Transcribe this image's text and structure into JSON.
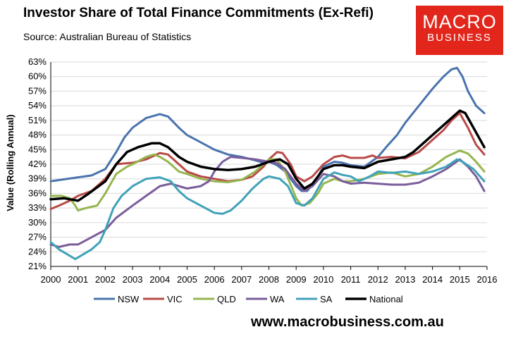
{
  "header": {
    "title": "Investor Share of Total Finance Commitments (Ex-Refi)",
    "source": "Source: Australian Bureau of Statistics"
  },
  "logo": {
    "line1": "MACRO",
    "line2": "BUSINESS"
  },
  "footer": {
    "url": "www.macrobusiness.com.au"
  },
  "colors": {
    "NSW": "#4a73ad",
    "VIC": "#b94a47",
    "QLD": "#96b54f",
    "WA": "#7a5d9b",
    "SA": "#40a2b8",
    "National": "#000000",
    "brand": "#e2261c"
  },
  "chart_data": {
    "type": "line",
    "title": "Investor Share of Total Finance Commitments (Ex-Refi)",
    "xlabel": "",
    "ylabel": "Value (Rolling Annual)",
    "xlim": [
      2000,
      2016
    ],
    "ylim": [
      21,
      63
    ],
    "x_ticks": [
      "2000",
      "2001",
      "2002",
      "2003",
      "2004",
      "2005",
      "2006",
      "2007",
      "2008",
      "2009",
      "2010",
      "2011",
      "2012",
      "2013",
      "2014",
      "2015",
      "2016"
    ],
    "y_ticks": [
      "21%",
      "24%",
      "27%",
      "30%",
      "33%",
      "36%",
      "39%",
      "42%",
      "45%",
      "48%",
      "51%",
      "54%",
      "57%",
      "60%",
      "63%"
    ],
    "legend_position": "bottom",
    "series": [
      {
        "name": "NSW",
        "points": [
          [
            2000,
            38.5
          ],
          [
            2000.5,
            38.9
          ],
          [
            2001,
            39.3
          ],
          [
            2001.5,
            39.7
          ],
          [
            2002,
            41
          ],
          [
            2002.4,
            44.5
          ],
          [
            2002.7,
            47.5
          ],
          [
            2003,
            49.5
          ],
          [
            2003.5,
            51.5
          ],
          [
            2004,
            52.3
          ],
          [
            2004.3,
            51.8
          ],
          [
            2004.7,
            49.5
          ],
          [
            2005,
            48
          ],
          [
            2005.5,
            46.5
          ],
          [
            2006,
            45
          ],
          [
            2006.5,
            44
          ],
          [
            2007,
            43.5
          ],
          [
            2007.5,
            42.8
          ],
          [
            2007.8,
            42.3
          ],
          [
            2008,
            42.5
          ],
          [
            2008.3,
            41.8
          ],
          [
            2008.6,
            40.5
          ],
          [
            2009,
            37.5
          ],
          [
            2009.2,
            36.5
          ],
          [
            2009.4,
            36.5
          ],
          [
            2009.7,
            38.5
          ],
          [
            2010,
            41.5
          ],
          [
            2010.4,
            42.5
          ],
          [
            2010.7,
            42.3
          ],
          [
            2011,
            41.8
          ],
          [
            2011.5,
            41.5
          ],
          [
            2012,
            43.5
          ],
          [
            2012.3,
            45.5
          ],
          [
            2012.7,
            48
          ],
          [
            2013,
            50.5
          ],
          [
            2013.5,
            54
          ],
          [
            2014,
            57.5
          ],
          [
            2014.4,
            60
          ],
          [
            2014.7,
            61.5
          ],
          [
            2014.9,
            61.8
          ],
          [
            2015.1,
            60
          ],
          [
            2015.3,
            57
          ],
          [
            2015.6,
            54
          ],
          [
            2015.9,
            52.5
          ]
        ]
      },
      {
        "name": "VIC",
        "points": [
          [
            2000,
            32.8
          ],
          [
            2000.3,
            33.5
          ],
          [
            2000.7,
            34.5
          ],
          [
            2001,
            35.5
          ],
          [
            2001.5,
            36.5
          ],
          [
            2002,
            39
          ],
          [
            2002.4,
            42
          ],
          [
            2003,
            42.3
          ],
          [
            2003.5,
            43
          ],
          [
            2004,
            44.3
          ],
          [
            2004.3,
            44
          ],
          [
            2004.7,
            42
          ],
          [
            2005,
            40.5
          ],
          [
            2005.5,
            39.5
          ],
          [
            2006,
            39
          ],
          [
            2006.5,
            38.5
          ],
          [
            2007,
            38.8
          ],
          [
            2007.4,
            39.5
          ],
          [
            2007.8,
            41.5
          ],
          [
            2008,
            43
          ],
          [
            2008.3,
            44.5
          ],
          [
            2008.5,
            44.3
          ],
          [
            2008.8,
            42
          ],
          [
            2009,
            39.5
          ],
          [
            2009.3,
            38.5
          ],
          [
            2009.6,
            39.5
          ],
          [
            2010,
            42
          ],
          [
            2010.4,
            43.5
          ],
          [
            2010.7,
            43.8
          ],
          [
            2011,
            43.3
          ],
          [
            2011.5,
            43.3
          ],
          [
            2011.8,
            43.8
          ],
          [
            2012,
            43.3
          ],
          [
            2012.5,
            43.5
          ],
          [
            2013,
            43.2
          ],
          [
            2013.5,
            44.5
          ],
          [
            2014,
            47
          ],
          [
            2014.4,
            49
          ],
          [
            2014.7,
            51
          ],
          [
            2015,
            52.5
          ],
          [
            2015.3,
            49.5
          ],
          [
            2015.6,
            46
          ],
          [
            2015.9,
            44
          ]
        ]
      },
      {
        "name": "QLD",
        "points": [
          [
            2000,
            35.5
          ],
          [
            2000.4,
            35.5
          ],
          [
            2000.7,
            35
          ],
          [
            2000.9,
            33.5
          ],
          [
            2001,
            32.5
          ],
          [
            2001.3,
            33
          ],
          [
            2001.7,
            33.5
          ],
          [
            2002,
            36
          ],
          [
            2002.4,
            40
          ],
          [
            2002.8,
            41.5
          ],
          [
            2003,
            42
          ],
          [
            2003.5,
            43.5
          ],
          [
            2003.8,
            44
          ],
          [
            2004,
            43.5
          ],
          [
            2004.3,
            42.5
          ],
          [
            2004.7,
            40.5
          ],
          [
            2005,
            40
          ],
          [
            2005.5,
            39
          ],
          [
            2006,
            38.5
          ],
          [
            2006.5,
            38.3
          ],
          [
            2007,
            38.8
          ],
          [
            2007.5,
            40.5
          ],
          [
            2007.8,
            42
          ],
          [
            2008,
            43
          ],
          [
            2008.3,
            43
          ],
          [
            2008.6,
            40.5
          ],
          [
            2009,
            35
          ],
          [
            2009.2,
            33.5
          ],
          [
            2009.5,
            34
          ],
          [
            2009.8,
            36
          ],
          [
            2010,
            38
          ],
          [
            2010.4,
            39
          ],
          [
            2010.7,
            38.5
          ],
          [
            2011,
            38.5
          ],
          [
            2011.5,
            39
          ],
          [
            2012,
            40
          ],
          [
            2012.5,
            40.3
          ],
          [
            2013,
            39.5
          ],
          [
            2013.5,
            40
          ],
          [
            2014,
            41.5
          ],
          [
            2014.5,
            43.5
          ],
          [
            2015,
            44.8
          ],
          [
            2015.3,
            44.2
          ],
          [
            2015.6,
            42.5
          ],
          [
            2015.9,
            40.5
          ]
        ]
      },
      {
        "name": "WA",
        "points": [
          [
            2000,
            25.5
          ],
          [
            2000.3,
            25
          ],
          [
            2000.7,
            25.5
          ],
          [
            2001,
            25.5
          ],
          [
            2001.5,
            27
          ],
          [
            2002,
            28.5
          ],
          [
            2002.4,
            31
          ],
          [
            2003,
            33.5
          ],
          [
            2003.5,
            35.5
          ],
          [
            2004,
            37.5
          ],
          [
            2004.4,
            38
          ],
          [
            2004.7,
            37.5
          ],
          [
            2005,
            37
          ],
          [
            2005.5,
            37.5
          ],
          [
            2005.8,
            38.5
          ],
          [
            2006,
            40.5
          ],
          [
            2006.3,
            42.5
          ],
          [
            2006.6,
            43.5
          ],
          [
            2007,
            43.3
          ],
          [
            2007.5,
            43
          ],
          [
            2008,
            42.5
          ],
          [
            2008.3,
            42.2
          ],
          [
            2008.6,
            41
          ],
          [
            2009,
            38
          ],
          [
            2009.3,
            36.5
          ],
          [
            2009.6,
            37.5
          ],
          [
            2010,
            40
          ],
          [
            2010.4,
            39.5
          ],
          [
            2010.7,
            38.5
          ],
          [
            2011,
            38
          ],
          [
            2011.5,
            38.2
          ],
          [
            2012,
            38
          ],
          [
            2012.5,
            37.8
          ],
          [
            2013,
            37.8
          ],
          [
            2013.5,
            38.2
          ],
          [
            2014,
            39.5
          ],
          [
            2014.5,
            41
          ],
          [
            2015,
            43
          ],
          [
            2015.3,
            41.5
          ],
          [
            2015.6,
            39.5
          ],
          [
            2015.9,
            36.5
          ]
        ]
      },
      {
        "name": "SA",
        "points": [
          [
            2000,
            26
          ],
          [
            2000.3,
            24.5
          ],
          [
            2000.6,
            23.5
          ],
          [
            2000.9,
            22.5
          ],
          [
            2001.2,
            23.5
          ],
          [
            2001.5,
            24.5
          ],
          [
            2001.8,
            26
          ],
          [
            2002,
            28.5
          ],
          [
            2002.3,
            33
          ],
          [
            2002.6,
            35.5
          ],
          [
            2003,
            37.5
          ],
          [
            2003.5,
            39
          ],
          [
            2004,
            39.3
          ],
          [
            2004.4,
            38.5
          ],
          [
            2004.7,
            36.5
          ],
          [
            2005,
            35
          ],
          [
            2005.5,
            33.5
          ],
          [
            2006,
            32
          ],
          [
            2006.3,
            31.8
          ],
          [
            2006.6,
            32.5
          ],
          [
            2007,
            34.5
          ],
          [
            2007.4,
            37
          ],
          [
            2007.8,
            39
          ],
          [
            2008,
            39.5
          ],
          [
            2008.4,
            39
          ],
          [
            2008.7,
            37.5
          ],
          [
            2009,
            34
          ],
          [
            2009.3,
            33.5
          ],
          [
            2009.6,
            35
          ],
          [
            2010,
            39
          ],
          [
            2010.4,
            40.3
          ],
          [
            2010.7,
            39.8
          ],
          [
            2011,
            39.5
          ],
          [
            2011.3,
            38.5
          ],
          [
            2011.7,
            39.5
          ],
          [
            2012,
            40.5
          ],
          [
            2012.5,
            40.2
          ],
          [
            2013,
            40.5
          ],
          [
            2013.5,
            40
          ],
          [
            2014,
            40.5
          ],
          [
            2014.5,
            41.5
          ],
          [
            2014.9,
            43
          ],
          [
            2015.1,
            42.5
          ],
          [
            2015.5,
            41
          ],
          [
            2015.9,
            38.5
          ]
        ]
      },
      {
        "name": "National",
        "points": [
          [
            2000,
            34.8
          ],
          [
            2000.5,
            35
          ],
          [
            2001,
            34.5
          ],
          [
            2001.4,
            36
          ],
          [
            2002,
            38.5
          ],
          [
            2002.4,
            42
          ],
          [
            2002.8,
            44.5
          ],
          [
            2003.2,
            45.5
          ],
          [
            2003.7,
            46.3
          ],
          [
            2004,
            46.3
          ],
          [
            2004.3,
            45.5
          ],
          [
            2004.7,
            43.5
          ],
          [
            2005,
            42.5
          ],
          [
            2005.5,
            41.5
          ],
          [
            2006,
            41
          ],
          [
            2006.5,
            40.8
          ],
          [
            2007,
            41
          ],
          [
            2007.5,
            41.5
          ],
          [
            2008,
            42.5
          ],
          [
            2008.4,
            43
          ],
          [
            2008.7,
            42
          ],
          [
            2009,
            39
          ],
          [
            2009.3,
            37
          ],
          [
            2009.6,
            38
          ],
          [
            2010,
            41
          ],
          [
            2010.4,
            41.8
          ],
          [
            2010.7,
            41.8
          ],
          [
            2011,
            41.5
          ],
          [
            2011.5,
            41.2
          ],
          [
            2012,
            42.5
          ],
          [
            2012.5,
            43
          ],
          [
            2013,
            43.5
          ],
          [
            2013.3,
            44.5
          ],
          [
            2013.7,
            46.5
          ],
          [
            2014,
            48
          ],
          [
            2014.5,
            50.5
          ],
          [
            2014.9,
            52.5
          ],
          [
            2015,
            53
          ],
          [
            2015.2,
            52.5
          ],
          [
            2015.5,
            49.5
          ],
          [
            2015.9,
            45.5
          ]
        ]
      }
    ]
  }
}
